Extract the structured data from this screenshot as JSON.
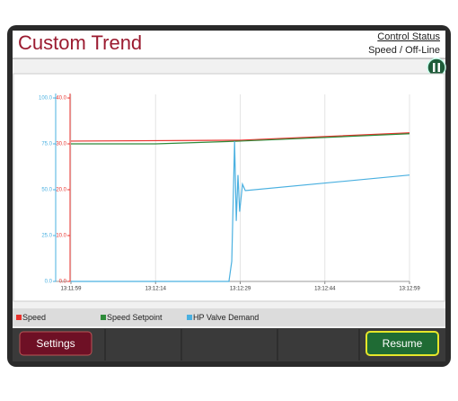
{
  "header": {
    "title": "Custom Trend",
    "status_label": "Control Status",
    "status_value": "Speed / Off-Line"
  },
  "chart_data": {
    "type": "line",
    "xlim": [
      "13:11:59",
      "13:12:59"
    ],
    "xticks": [
      "13:11:59",
      "13:12:14",
      "13:12:29",
      "13:12:44",
      "13:12:59"
    ],
    "ylim": [
      0,
      40
    ],
    "yticks": [
      {
        "value": 0,
        "label": "0.0"
      },
      {
        "value": 10,
        "label": "10.0"
      },
      {
        "value": 20,
        "label": "20.0"
      },
      {
        "value": 30,
        "label": "30.0"
      },
      {
        "value": 40,
        "label": "40.0"
      }
    ],
    "y2lim": [
      0,
      100
    ],
    "y2ticks": [
      {
        "value": 0,
        "label": "0.0"
      },
      {
        "value": 25,
        "label": "25.0"
      },
      {
        "value": 50,
        "label": "50.0"
      },
      {
        "value": 75,
        "label": "75.0"
      },
      {
        "value": 100,
        "label": "100.0"
      }
    ],
    "grid": true,
    "series": [
      {
        "name": "Speed",
        "color": "#e8322d",
        "x": [
          "13:11:59",
          "13:12:29",
          "13:12:59"
        ],
        "values": [
          30.6,
          30.8,
          32.4
        ]
      },
      {
        "name": "Speed Setpoint",
        "color": "#2e8b3a",
        "x": [
          "13:11:59",
          "13:12:14",
          "13:12:29",
          "13:12:59"
        ],
        "values": [
          30.0,
          30.0,
          30.6,
          32.2
        ]
      },
      {
        "name": "HP Valve Demand",
        "color": "#4ab0e0",
        "axis": "y2",
        "x": [
          "13:11:59",
          "13:12:27",
          "13:12:27.5",
          "13:12:28",
          "13:12:28.3",
          "13:12:28.6",
          "13:12:28.9",
          "13:12:29.4",
          "13:12:29.9",
          "13:12:59"
        ],
        "values": [
          0,
          0,
          11,
          76.5,
          33,
          58,
          38,
          53,
          49.5,
          58
        ]
      }
    ]
  },
  "buttons": {
    "settings": "Settings",
    "resume": "Resume"
  }
}
